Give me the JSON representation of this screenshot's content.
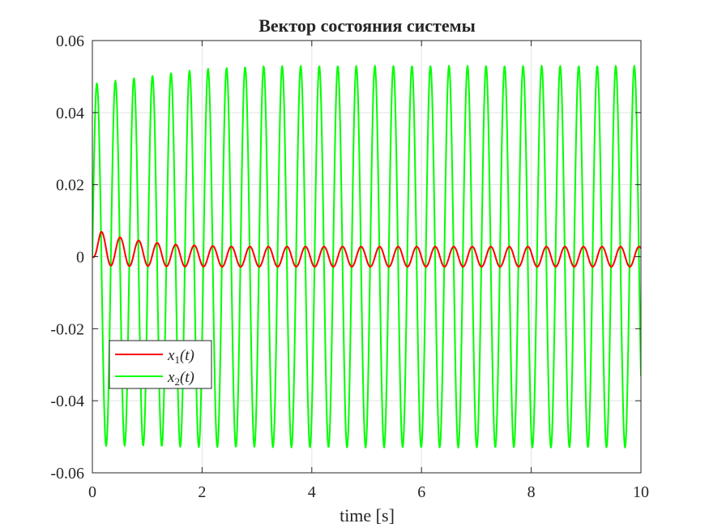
{
  "chart_data": {
    "type": "line",
    "title": "Вектор состояния системы",
    "xlabel": "time [s]",
    "ylabel": "",
    "xlim": [
      0,
      10
    ],
    "ylim": [
      -0.06,
      0.06
    ],
    "xticks": [
      0,
      2,
      4,
      6,
      8,
      10
    ],
    "xtick_labels": [
      "0",
      "2",
      "4",
      "6",
      "8",
      "10"
    ],
    "yticks": [
      -0.06,
      -0.04,
      -0.02,
      0,
      0.02,
      0.04,
      0.06
    ],
    "ytick_labels": [
      "-0.06",
      "-0.04",
      "-0.02",
      "0",
      "0.02",
      "0.04",
      "0.06"
    ],
    "grid": true,
    "legend_position": "bottom-left",
    "sample_step": 0.01,
    "series": [
      {
        "name": "x_1(t)",
        "legend_main": "x",
        "legend_sub": "1",
        "legend_arg": "(t)",
        "color": "#ff0000",
        "frequency_hz": 2.96,
        "envelope": [
          [
            0,
            0.0025
          ],
          [
            0.15,
            0.0048
          ],
          [
            0.4,
            0.0041
          ],
          [
            0.8,
            0.0036
          ],
          [
            1.2,
            0.0032
          ],
          [
            2,
            0.0029
          ],
          [
            3,
            0.0028
          ],
          [
            10,
            0.0028
          ]
        ],
        "offset": [
          [
            0,
            0.0025
          ],
          [
            0.6,
            0.0012
          ],
          [
            1.5,
            0.0003
          ],
          [
            2.5,
            0
          ],
          [
            10,
            0
          ]
        ]
      },
      {
        "name": "x_2(t)",
        "legend_main": "x",
        "legend_sub": "2",
        "legend_arg": "(t)",
        "color": "#00ff00",
        "frequency_hz": 2.96,
        "envelope": [
          [
            0,
            0.0503
          ],
          [
            0.5,
            0.0508
          ],
          [
            1,
            0.0513
          ],
          [
            1.5,
            0.052
          ],
          [
            2,
            0.0525
          ],
          [
            3,
            0.0529
          ],
          [
            4,
            0.053
          ],
          [
            10,
            0.053
          ]
        ],
        "offset": [
          [
            0,
            -0.0023
          ],
          [
            1,
            -0.0012
          ],
          [
            2,
            -0.0004
          ],
          [
            3,
            0
          ],
          [
            10,
            0
          ]
        ]
      }
    ]
  }
}
